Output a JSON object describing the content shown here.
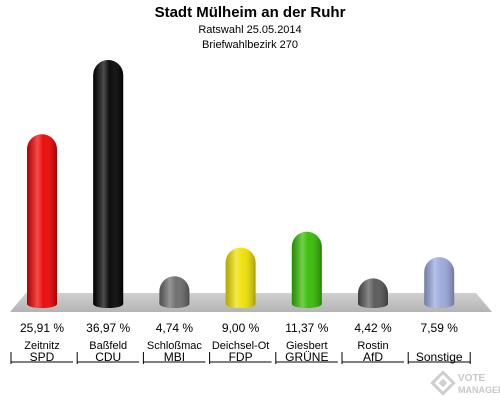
{
  "header": {
    "title": "Stadt Mülheim an der Ruhr",
    "subtitle1": "Ratswahl 25.05.2014",
    "subtitle2": "Briefwahlbezirk 270"
  },
  "chart_data": {
    "type": "bar",
    "title": "Stadt Mülheim an der Ruhr",
    "ylim": [
      0,
      36.97
    ],
    "categories": [
      {
        "candidate": "Zeitnitz",
        "party": "SPD",
        "value": 25.91,
        "label": "25,91 %",
        "color": "#ee0000"
      },
      {
        "candidate": "Baßfeld",
        "party": "CDU",
        "value": 36.97,
        "label": "36,97 %",
        "color": "#000000"
      },
      {
        "candidate": "Schloßmac",
        "party": "MBI",
        "value": 4.74,
        "label": "4,74 %",
        "color": "#6a6a6a"
      },
      {
        "candidate": "Deichsel-Ot",
        "party": "FDP",
        "value": 9.0,
        "label": "9,00 %",
        "color": "#f0e000"
      },
      {
        "candidate": "Giesbert",
        "party": "GRÜNE",
        "value": 11.37,
        "label": "11,37 %",
        "color": "#33bb00"
      },
      {
        "candidate": "Rostin",
        "party": "AfD",
        "value": 4.42,
        "label": "4,42 %",
        "color": "#555555"
      },
      {
        "candidate": "",
        "party": "Sonstige",
        "value": 7.59,
        "label": "7,59 %",
        "color": "#99a8dd"
      }
    ]
  },
  "logo": {
    "line1": "VOTE",
    "line2": "MANAGER"
  }
}
